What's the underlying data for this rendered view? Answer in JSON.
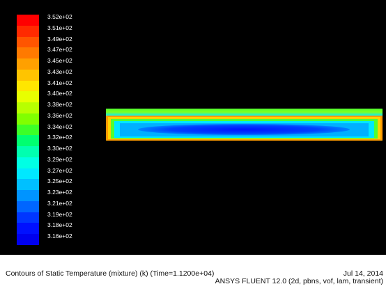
{
  "colorbar": {
    "labels": [
      "3.52e+02",
      "3.51e+02",
      "3.49e+02",
      "3.47e+02",
      "3.45e+02",
      "3.43e+02",
      "3.41e+02",
      "3.40e+02",
      "3.38e+02",
      "3.36e+02",
      "3.34e+02",
      "3.32e+02",
      "3.30e+02",
      "3.29e+02",
      "3.27e+02",
      "3.25e+02",
      "3.23e+02",
      "3.21e+02",
      "3.19e+02",
      "3.18e+02",
      "3.16e+02"
    ],
    "colors": [
      "#ff0000",
      "#ff2a00",
      "#ff5500",
      "#ff7a00",
      "#ffa000",
      "#ffc400",
      "#ffe600",
      "#e8ff00",
      "#b8ff00",
      "#80ff00",
      "#3cff28",
      "#00ff70",
      "#00ffb0",
      "#00ffe4",
      "#00e8ff",
      "#00c0ff",
      "#0094ff",
      "#0066ff",
      "#0036ff",
      "#0010ff",
      "#0000ee"
    ]
  },
  "caption": {
    "title": "Contours of Static Temperature (mixture)  (k)  (Time=1.1200e+04)",
    "date": "Jul 14, 2014",
    "solver": "ANSYS FLUENT 12.0 (2d, pbns, vof, lam, transient)"
  }
}
